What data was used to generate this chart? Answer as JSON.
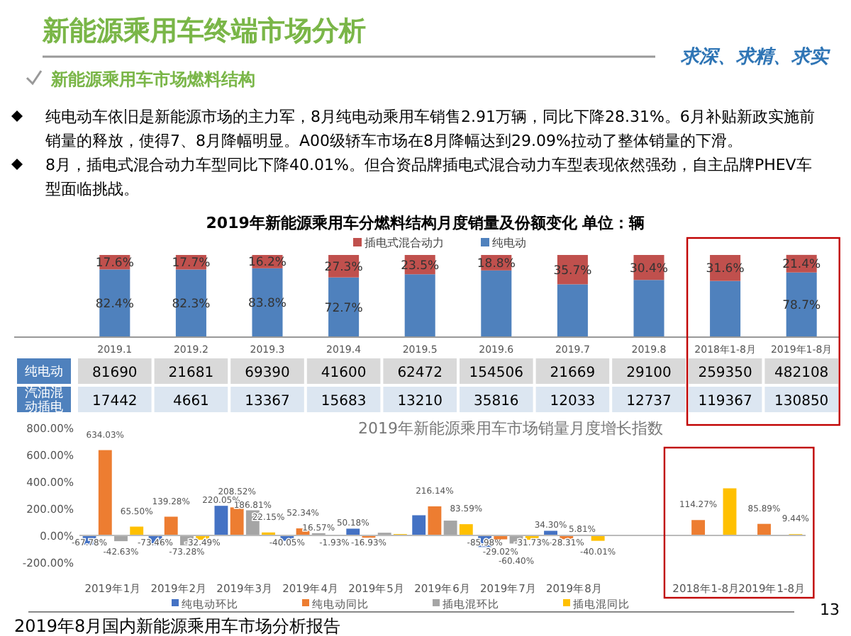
{
  "chart_data": [
    {
      "type": "other",
      "title": "新能源乘用车终端市场分析",
      "subtitle": "新能源乘用车市场燃料结构",
      "annotations": [
        "求深、求精、求实",
        "纯电动车依旧是新能源市场的主力军，8月纯电动乘用车销售2.91万辆，同比下降28.31%。6月补贴新政实施前销量的释放，使得7、8月降幅明显。A00级轿车市场在8月降幅达到29.09%拉动了整体销量的下滑。",
        "8月，插电式混合动力车型同比下降40.01%。但合资品牌插电式混合动力车型表现依然强劲，自主品牌PHEV车型面临挑战。",
        "2019年8月国内新能源乘用车市场分析报告",
        "13"
      ]
    },
    {
      "type": "bar",
      "title": "2019年新能源乘用车分燃料结构月度销量及份额变化      单位：辆",
      "stacked": true,
      "legend": "top",
      "tick_labels": false,
      "ylim": [
        0,
        100
      ],
      "categories": [
        null,
        null,
        null,
        null,
        null,
        null,
        null,
        null,
        null,
        null
      ],
      "series": [
        {
          "name": "纯电动",
          "color": "#4f81bd",
          "values": [
            82.4,
            82.3,
            83.8,
            72.7,
            76.5,
            81.2,
            64.3,
            69.6,
            68.4,
            78.7
          ],
          "value_labels": [
            "82.4%",
            "82.3%",
            "83.8%",
            "72.7%",
            null,
            null,
            null,
            null,
            null,
            "78.7%"
          ]
        },
        {
          "name": "插电式混合动力",
          "color": "#c0504d",
          "values": [
            17.6,
            17.7,
            16.2,
            27.3,
            23.5,
            18.8,
            35.7,
            30.4,
            31.6,
            21.4
          ],
          "value_labels": [
            "17.6%",
            "17.7%",
            "16.2%",
            "27.3%",
            "23.5%",
            "18.8%",
            "35.7%",
            "30.4%",
            "31.6%",
            "21.4%"
          ]
        }
      ]
    },
    {
      "type": "heatmap",
      "data_labels": true,
      "categories": [
        "2019.1",
        "2019.2",
        "2019.3",
        "2019.4",
        "2019.5",
        "2019.6",
        "2019.7",
        "2019.8",
        "2018年1-8月",
        "2019年1-8月"
      ],
      "y_categories": [
        "纯电动",
        "汽油混动插电"
      ],
      "cells": [
        [
          81690,
          21681,
          69390,
          41600,
          62472,
          154506,
          21669,
          29100,
          259350,
          482108
        ],
        [
          17442,
          4661,
          13367,
          15683,
          13210,
          35816,
          12033,
          12737,
          119367,
          130850
        ]
      ]
    },
    {
      "type": "bar",
      "title": "2019年新能源乘用车市场销量月度增长指数",
      "legend": "bottom",
      "categories": [
        "2019年1月",
        "2019年2月",
        "2019年3月",
        "2019年4月",
        "2019年5月",
        "2019年6月",
        "2019年7月",
        "2019年8月",
        null,
        "2018年1-8月",
        "2019年1-8月"
      ],
      "ylim": [
        -200,
        800
      ],
      "yticks": [
        {
          "value": -200,
          "label": "-200.00%"
        },
        {
          "value": 0,
          "label": "0.00%"
        },
        {
          "value": 200,
          "label": "200.00%"
        },
        {
          "value": 400,
          "label": "400.00%"
        },
        {
          "value": 600,
          "label": "600.00%"
        },
        {
          "value": 800,
          "label": "800.00%"
        }
      ],
      "series": [
        {
          "name": "纯电动环比",
          "color": "#4472c4",
          "values": [
            -67.78,
            -73.46,
            220.05,
            -40.05,
            50.18,
            150,
            -85.98,
            34.3,
            null,
            null,
            null
          ],
          "value_labels": [
            "-67.78%",
            "-73.46%",
            "220.05%",
            "-40.05%",
            "50.18%",
            null,
            "-85.98%",
            "34.30%",
            null,
            null,
            null
          ]
        },
        {
          "name": "纯电动同比",
          "color": "#ed7d31",
          "values": [
            634.03,
            139.28,
            208.52,
            52.34,
            -16.93,
            216.14,
            -29.02,
            -28.31,
            null,
            114.27,
            85.89
          ],
          "value_labels": [
            "634.03%",
            "139.28%",
            "208.52%",
            "52.34%",
            "-16.93%",
            "216.14%",
            "-29.02%",
            "-28.31%",
            null,
            "114.27%",
            "85.89%"
          ]
        },
        {
          "name": "插电混环比",
          "color": "#a5a5a5",
          "values": [
            -42.63,
            -73.28,
            186.81,
            16.57,
            20,
            110,
            -60.4,
            5.81,
            null,
            null,
            null
          ],
          "value_labels": [
            "-42.63%",
            "-73.28%",
            "186.81%",
            "16.57%",
            null,
            null,
            "-60.40%",
            "5.81%",
            null,
            null,
            null
          ]
        },
        {
          "name": "插电混同比",
          "color": "#ffc000",
          "values": [
            65.5,
            -32.49,
            22.15,
            -1.93,
            10,
            83.59,
            -31.73,
            -40.01,
            null,
            350,
            9.44
          ],
          "value_labels": [
            "65.50%",
            "-32.49%",
            "22.15%",
            "-1.93%",
            null,
            "83.59%",
            "-31.73%",
            "-40.01%",
            null,
            null,
            "9.44%"
          ]
        }
      ]
    }
  ]
}
